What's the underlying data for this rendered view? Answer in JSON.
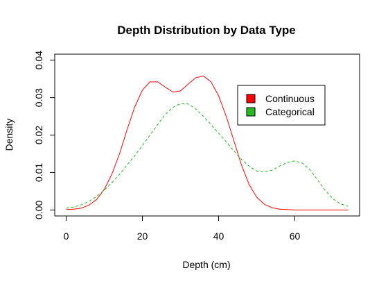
{
  "chart_data": {
    "type": "line",
    "title": "Depth Distribution by Data Type",
    "xlabel": "Depth (cm)",
    "ylabel": "Density",
    "xlim": [
      -3,
      77
    ],
    "ylim": [
      -0.0016,
      0.0416
    ],
    "xticks": [
      0,
      20,
      40,
      60
    ],
    "xtick_labels": [
      "0",
      "20",
      "40",
      "60"
    ],
    "yticks": [
      0.0,
      0.01,
      0.02,
      0.03,
      0.04
    ],
    "ytick_labels": [
      "0.00",
      "0.01",
      "0.02",
      "0.03",
      "0.04"
    ],
    "grid": false,
    "legend_position": "top-right",
    "series": [
      {
        "name": "Continuous",
        "color": "#FF0000",
        "dash": "solid",
        "x": [
          0,
          2,
          4,
          6,
          8,
          10,
          12,
          14,
          16,
          18,
          20,
          22,
          24,
          26,
          28,
          30,
          32,
          34,
          36,
          38,
          40,
          42,
          44,
          46,
          48,
          50,
          52,
          54,
          56,
          58,
          60,
          62,
          64,
          66,
          68,
          70,
          72,
          74
        ],
        "y": [
          0.0001,
          0.0002,
          0.0005,
          0.0013,
          0.0028,
          0.0055,
          0.0096,
          0.015,
          0.0215,
          0.0275,
          0.032,
          0.0342,
          0.0342,
          0.0328,
          0.0315,
          0.0318,
          0.0336,
          0.0353,
          0.0358,
          0.0342,
          0.0305,
          0.025,
          0.0185,
          0.012,
          0.0068,
          0.0034,
          0.0015,
          0.0006,
          0.0002,
          0.0001,
          0.0,
          0.0,
          0.0,
          0.0,
          0.0,
          0.0,
          0.0,
          0.0
        ]
      },
      {
        "name": "Categorical",
        "color": "#22BB22",
        "dash": "dashed",
        "x": [
          0,
          2,
          4,
          6,
          8,
          10,
          12,
          14,
          16,
          18,
          20,
          22,
          24,
          26,
          28,
          30,
          32,
          34,
          36,
          38,
          40,
          42,
          44,
          46,
          48,
          50,
          52,
          54,
          56,
          58,
          60,
          62,
          64,
          66,
          68,
          70,
          72,
          74
        ],
        "y": [
          0.0005,
          0.0008,
          0.0014,
          0.0023,
          0.0036,
          0.0053,
          0.0073,
          0.0095,
          0.012,
          0.0145,
          0.0172,
          0.02,
          0.0228,
          0.0255,
          0.0274,
          0.0284,
          0.0283,
          0.027,
          0.025,
          0.0228,
          0.0205,
          0.0182,
          0.0158,
          0.0135,
          0.0117,
          0.0104,
          0.0101,
          0.0106,
          0.0117,
          0.0127,
          0.0131,
          0.0125,
          0.0107,
          0.008,
          0.0052,
          0.003,
          0.0016,
          0.001
        ]
      }
    ]
  }
}
